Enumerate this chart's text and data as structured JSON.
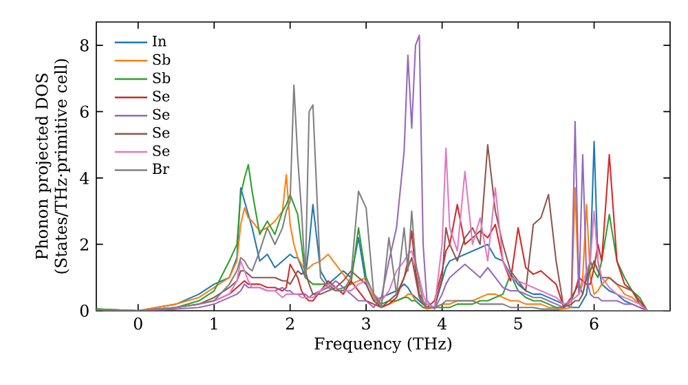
{
  "chart_data": {
    "type": "line",
    "xlabel": "Frequency (THz)",
    "ylabel": "Phonon projected DOS (States/THz·primitive cell)",
    "x": [
      -0.55,
      0,
      0.5,
      0.8,
      1.0,
      1.2,
      1.3,
      1.35,
      1.4,
      1.45,
      1.5,
      1.6,
      1.7,
      1.8,
      1.9,
      1.95,
      2.0,
      2.05,
      2.1,
      2.15,
      2.2,
      2.25,
      2.3,
      2.4,
      2.5,
      2.6,
      2.7,
      2.8,
      2.9,
      3.0,
      3.1,
      3.2,
      3.3,
      3.4,
      3.5,
      3.55,
      3.6,
      3.65,
      3.7,
      3.75,
      3.8,
      3.9,
      4.0,
      4.05,
      4.1,
      4.2,
      4.3,
      4.4,
      4.5,
      4.6,
      4.7,
      4.8,
      4.9,
      5.0,
      5.1,
      5.2,
      5.3,
      5.4,
      5.5,
      5.6,
      5.7,
      5.75,
      5.8,
      5.85,
      5.9,
      5.95,
      6.0,
      6.05,
      6.1,
      6.2,
      6.3,
      6.4,
      6.5,
      6.6,
      6.7,
      7.0
    ],
    "xlim": [
      -0.55,
      7.0
    ],
    "ylim": [
      0,
      8.7
    ],
    "xticks": [
      0,
      1,
      2,
      3,
      4,
      5,
      6
    ],
    "yticks": [
      0,
      2,
      4,
      6,
      8
    ],
    "legend": "top left",
    "line_style": "solid",
    "marker": "none",
    "series": [
      {
        "name": "In",
        "color": "#1f77b4",
        "values": [
          0.05,
          0,
          0.2,
          0.5,
          0.8,
          1.0,
          1.6,
          3.7,
          3.3,
          2.9,
          2.5,
          1.5,
          1.7,
          1.3,
          1.5,
          1.6,
          1.7,
          1.6,
          1.6,
          1.3,
          1.0,
          2.0,
          3.2,
          1.2,
          0.8,
          1.0,
          1.2,
          1.0,
          2.2,
          0.8,
          0.3,
          0.4,
          0.5,
          0.6,
          0.8,
          0.7,
          0.5,
          0.4,
          0.3,
          0.2,
          0.2,
          0.1,
          0.9,
          1.3,
          1.5,
          1.6,
          1.7,
          1.8,
          1.9,
          2.0,
          1.6,
          1.5,
          1.1,
          0.8,
          0.6,
          0.5,
          0.5,
          0.4,
          0.3,
          0.2,
          0.1,
          0.1,
          0.1,
          0.3,
          0.5,
          1.5,
          5.1,
          1.5,
          0.8,
          0.6,
          0.5,
          0.3,
          0.2,
          0.1,
          0,
          0
        ]
      },
      {
        "name": "Sb",
        "color": "#ff7f0e",
        "values": [
          0.05,
          0,
          0.2,
          0.4,
          0.7,
          1.0,
          1.5,
          2.6,
          3.1,
          2.8,
          2.7,
          2.4,
          2.5,
          2.7,
          3.0,
          4.1,
          2.6,
          2.0,
          1.6,
          1.4,
          1.2,
          1.3,
          1.4,
          1.5,
          1.7,
          1.4,
          1.1,
          0.8,
          0.9,
          1.0,
          0.4,
          0.1,
          0.2,
          0.3,
          0.4,
          0.5,
          0.5,
          0.3,
          0.2,
          0.1,
          0.05,
          0.1,
          0.2,
          0.2,
          0.2,
          0.3,
          0.3,
          0.3,
          0.4,
          0.5,
          0.5,
          0.4,
          0.3,
          0.3,
          0.2,
          0.2,
          0.2,
          0.1,
          0.1,
          0.05,
          0.1,
          3.7,
          0.5,
          1.0,
          3.2,
          1.0,
          0.5,
          0.6,
          0.8,
          1.0,
          0.8,
          0.5,
          0.4,
          0.2,
          0,
          0
        ]
      },
      {
        "name": "Sb",
        "color": "#2ca02c",
        "values": [
          0.05,
          0,
          0.1,
          0.3,
          0.6,
          1.5,
          2.0,
          3.5,
          4.0,
          4.4,
          3.6,
          2.3,
          2.7,
          2.3,
          3.0,
          3.2,
          3.5,
          3.2,
          2.9,
          2.0,
          1.0,
          0.9,
          0.8,
          0.8,
          0.8,
          0.6,
          0.7,
          0.8,
          2.5,
          1.0,
          0.5,
          0.2,
          0.3,
          0.3,
          0.4,
          0.4,
          0.3,
          0.3,
          0.2,
          0.1,
          0.1,
          0.1,
          0.1,
          0.1,
          0.1,
          0.2,
          0.2,
          0.2,
          0.3,
          0.3,
          0.4,
          0.5,
          1.1,
          0.6,
          0.4,
          0.3,
          0.3,
          0.2,
          0.1,
          0.1,
          0.3,
          0.6,
          0.8,
          0.5,
          1.0,
          1.5,
          1.2,
          1.0,
          1.5,
          2.9,
          1.5,
          1.0,
          0.6,
          0.4,
          0,
          0
        ]
      },
      {
        "name": "Se",
        "color": "#d62728",
        "values": [
          null,
          null,
          null,
          0.2,
          0.3,
          0.5,
          0.7,
          0.8,
          0.9,
          0.8,
          0.8,
          0.8,
          0.7,
          0.7,
          0.6,
          0.7,
          1.4,
          1.2,
          1.0,
          0.6,
          0.4,
          0.3,
          0.3,
          0.6,
          0.9,
          0.7,
          0.5,
          0.9,
          0.6,
          0.3,
          0.2,
          0.1,
          0.2,
          0.4,
          1.0,
          1.5,
          2.4,
          1.2,
          0.5,
          0.3,
          0.1,
          0.3,
          1.2,
          1.8,
          2.0,
          3.2,
          2.0,
          2.2,
          2.4,
          2.2,
          2.6,
          1.5,
          0.9,
          2.5,
          1.3,
          1.1,
          1.2,
          1.0,
          0.8,
          0.1,
          0.4,
          0.6,
          1.0,
          0.9,
          0.8,
          0.8,
          1.3,
          2.0,
          1.5,
          4.7,
          1.5,
          0.8,
          0.6,
          0.3,
          0,
          0
        ]
      },
      {
        "name": "Se",
        "color": "#9467bd",
        "values": [
          0.02,
          0,
          0.05,
          0.1,
          0.2,
          0.4,
          0.5,
          0.6,
          0.8,
          0.7,
          0.7,
          0.7,
          0.6,
          0.6,
          0.7,
          0.6,
          0.6,
          0.5,
          0.5,
          0.5,
          0.5,
          0.4,
          0.5,
          0.6,
          0.7,
          0.9,
          0.7,
          0.5,
          0.3,
          0.3,
          0.1,
          0.4,
          1.5,
          2.5,
          4.8,
          7.7,
          5.5,
          8.0,
          8.3,
          2.0,
          0.3,
          0.05,
          0.5,
          0.8,
          1.0,
          1.2,
          1.4,
          1.2,
          1.0,
          1.3,
          1.0,
          0.7,
          0.6,
          0.6,
          0.5,
          0.4,
          0.4,
          0.3,
          0.2,
          0.1,
          0.3,
          5.7,
          0.5,
          4.7,
          1.0,
          0.5,
          0.4,
          0.4,
          0.3,
          0.3,
          0.3,
          0.2,
          0.2,
          0.1,
          0,
          0
        ]
      },
      {
        "name": "Se",
        "color": "#8c564b",
        "values": [
          0.02,
          0,
          0.1,
          0.2,
          0.4,
          0.7,
          0.9,
          1.2,
          1.2,
          1.1,
          1.0,
          1.0,
          1.0,
          1.0,
          0.9,
          0.9,
          0.8,
          1.0,
          1.2,
          1.1,
          1.2,
          0.8,
          0.5,
          0.5,
          0.6,
          0.7,
          0.9,
          1.2,
          1.0,
          0.8,
          0.3,
          0.1,
          0.3,
          0.5,
          1.0,
          1.3,
          1.6,
          1.0,
          0.4,
          0.2,
          0.1,
          0.1,
          1.0,
          2.5,
          2.0,
          1.5,
          2.2,
          2.5,
          2.0,
          5.0,
          3.0,
          2.0,
          1.2,
          0.9,
          0.6,
          2.6,
          2.8,
          3.5,
          1.5,
          0.1,
          0.2,
          0.3,
          0.3,
          0.5,
          1.0,
          1.2,
          1.5,
          1.2,
          1.0,
          1.0,
          0.8,
          0.7,
          0.6,
          0.2,
          0,
          0
        ]
      },
      {
        "name": "Se",
        "color": "#e377c2",
        "values": [
          0.02,
          0,
          0.1,
          0.2,
          0.3,
          0.5,
          0.9,
          1.5,
          1.2,
          0.9,
          0.7,
          0.7,
          0.6,
          0.6,
          0.4,
          0.5,
          0.5,
          0.5,
          0.5,
          0.4,
          0.4,
          0.4,
          0.4,
          0.6,
          0.8,
          0.7,
          0.6,
          0.6,
          0.8,
          0.9,
          0.5,
          0.3,
          0.6,
          1.2,
          1.5,
          1.7,
          1.8,
          1.4,
          1.0,
          0.5,
          0.2,
          0.1,
          2.0,
          4.9,
          2.5,
          1.8,
          4.2,
          2.0,
          2.8,
          1.5,
          3.7,
          1.5,
          1.0,
          0.9,
          0.8,
          0.7,
          0.6,
          0.5,
          0.4,
          0.2,
          0.3,
          0.4,
          0.5,
          0.8,
          1.2,
          1.5,
          3.0,
          1.5,
          1.0,
          0.7,
          0.5,
          0.4,
          0.3,
          0.2,
          0,
          0
        ]
      },
      {
        "name": "Br",
        "color": "#7f7f7f",
        "values": [
          0.02,
          0,
          0.1,
          0.2,
          0.3,
          0.8,
          1.2,
          1.6,
          1.5,
          1.3,
          1.2,
          1.8,
          2.5,
          2.0,
          2.5,
          3.0,
          3.3,
          6.8,
          4.6,
          3.0,
          1.0,
          6.0,
          6.2,
          1.0,
          0.7,
          0.6,
          0.6,
          1.0,
          3.6,
          3.1,
          0.5,
          0.1,
          2.2,
          0.5,
          2.5,
          1.2,
          3.0,
          1.5,
          0.8,
          0.3,
          0.1,
          0.1,
          0.2,
          0.3,
          0.3,
          0.3,
          0.3,
          0.3,
          0.2,
          0.2,
          0.2,
          0.2,
          0.1,
          0.1,
          0.1,
          0.1,
          0.05,
          0.05,
          0.05,
          0,
          0,
          0,
          0,
          0,
          0,
          0,
          0,
          0,
          0,
          0,
          0,
          0,
          0,
          0,
          0,
          0
        ]
      }
    ]
  }
}
